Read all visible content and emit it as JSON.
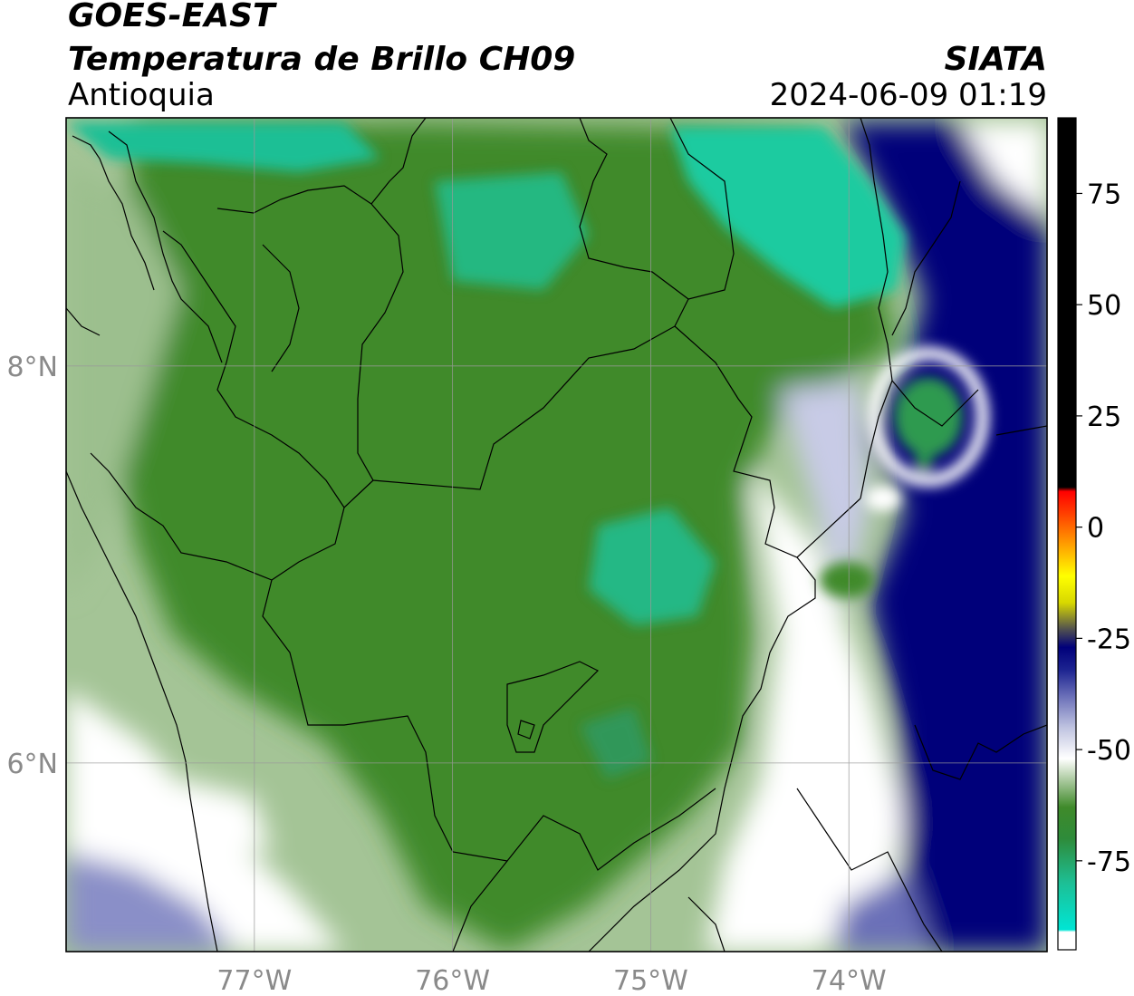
{
  "header": {
    "satellite": "GOES-EAST",
    "product": "Temperatura de Brillo CH09",
    "region": "Antioquia",
    "organization": "SIATA",
    "datetime": "2024-06-09 01:19"
  },
  "map": {
    "lon_range": [
      -77.95,
      -73.0
    ],
    "lat_range": [
      5.05,
      9.25
    ],
    "lon_ticks": [
      {
        "value": -77,
        "label": "77°W"
      },
      {
        "value": -76,
        "label": "76°W"
      },
      {
        "value": -75,
        "label": "75°W"
      },
      {
        "value": -74,
        "label": "74°W"
      }
    ],
    "lat_ticks": [
      {
        "value": 8,
        "label": "8°N"
      },
      {
        "value": 6,
        "label": "6°N"
      }
    ],
    "gridlines": true
  },
  "colorbar": {
    "range": [
      -95,
      92
    ],
    "ticks": [
      {
        "value": 75,
        "label": "75"
      },
      {
        "value": 50,
        "label": "50"
      },
      {
        "value": 25,
        "label": "25"
      },
      {
        "value": 0,
        "label": "0"
      },
      {
        "value": -25,
        "label": "-25"
      },
      {
        "value": -50,
        "label": "-50"
      },
      {
        "value": -75,
        "label": "-75"
      }
    ],
    "stops": [
      {
        "value": -95,
        "color": "#ffffff"
      },
      {
        "value": -91,
        "color": "#ffffff"
      },
      {
        "value": -90.5,
        "color": "#00e5d4"
      },
      {
        "value": -80,
        "color": "#1dbf95"
      },
      {
        "value": -70,
        "color": "#2e8b3a"
      },
      {
        "value": -63,
        "color": "#3f8a2a"
      },
      {
        "value": -57,
        "color": "#a8c89c"
      },
      {
        "value": -52,
        "color": "#ffffff"
      },
      {
        "value": -45,
        "color": "#bfc3e0"
      },
      {
        "value": -38,
        "color": "#6a6fb8"
      },
      {
        "value": -32,
        "color": "#1c2390"
      },
      {
        "value": -27,
        "color": "#00007a"
      },
      {
        "value": -23,
        "color": "#505050"
      },
      {
        "value": -17,
        "color": "#d8d800"
      },
      {
        "value": -11,
        "color": "#ffff00"
      },
      {
        "value": -4,
        "color": "#ffa000"
      },
      {
        "value": 3,
        "color": "#ff4000"
      },
      {
        "value": 8,
        "color": "#ff0000"
      },
      {
        "value": 9,
        "color": "#000000"
      },
      {
        "value": 92,
        "color": "#000000"
      }
    ]
  },
  "colors": {
    "cold_cloud_green": "#3f8a2a",
    "very_cold_teal": "#1fc79a",
    "clear_sky_navy": "#00007a",
    "mid_white": "#ffffff",
    "grid": "#9a9a9a"
  }
}
